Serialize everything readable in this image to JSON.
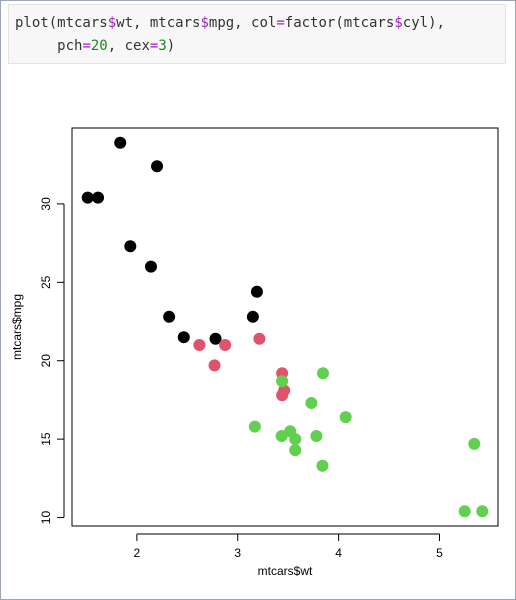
{
  "code": {
    "lines": [
      "plot(mtcars$wt, mtcars$mpg, col=factor(mtcars$cyl),",
      "     pch=20, cex=3)"
    ]
  },
  "chart_data": {
    "type": "scatter",
    "x_label": "mtcars$wt",
    "y_label": "mtcars$mpg",
    "xlim": [
      1.357,
      5.58
    ],
    "ylim": [
      9.46,
      34.84
    ],
    "xticks": [
      2,
      3,
      4,
      5
    ],
    "yticks": [
      10,
      15,
      20,
      25,
      30
    ],
    "grid": false,
    "series": [
      {
        "color": "#000000",
        "x": [
          2.32,
          3.19,
          3.15,
          2.2,
          1.615,
          1.835,
          2.465,
          1.935,
          2.14,
          1.513,
          2.78
        ],
        "values": [
          22.8,
          24.4,
          22.8,
          32.4,
          30.4,
          33.9,
          21.5,
          27.3,
          26,
          30.4,
          21.4
        ]
      },
      {
        "color": "#DF536B",
        "x": [
          2.62,
          2.875,
          3.215,
          3.46,
          3.44,
          3.44,
          2.77
        ],
        "values": [
          21,
          21,
          21.4,
          18.1,
          19.2,
          17.8,
          19.7
        ]
      },
      {
        "color": "#61D04F",
        "x": [
          3.44,
          3.57,
          4.07,
          3.73,
          3.78,
          5.25,
          5.424,
          5.345,
          3.52,
          3.435,
          3.84,
          3.845,
          3.17,
          3.57
        ],
        "values": [
          18.7,
          14.3,
          16.4,
          17.3,
          15.2,
          10.4,
          10.4,
          14.7,
          15.5,
          15.2,
          13.3,
          19.2,
          15.8,
          15
        ]
      }
    ]
  }
}
